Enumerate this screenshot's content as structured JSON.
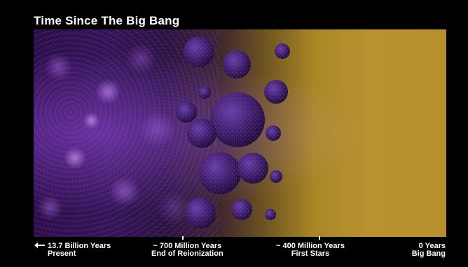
{
  "title": "Time Since The Big Bang",
  "timeline": {
    "labels": [
      {
        "line1": "13.7 Billion Years",
        "line2": "Present"
      },
      {
        "line1": "~ 700 Million Years",
        "line2": "End of Reionization"
      },
      {
        "line1": "~ 400 Million Years",
        "line2": "First Stars"
      },
      {
        "line1": "0 Years",
        "line2": "Big Bang"
      }
    ]
  },
  "colors": {
    "background": "#000000",
    "early_universe": "#b6902c",
    "cosmic_web": "#321454",
    "sphere": "#3b1c66"
  },
  "icons": {
    "present_marker": "left-arrow-icon"
  }
}
